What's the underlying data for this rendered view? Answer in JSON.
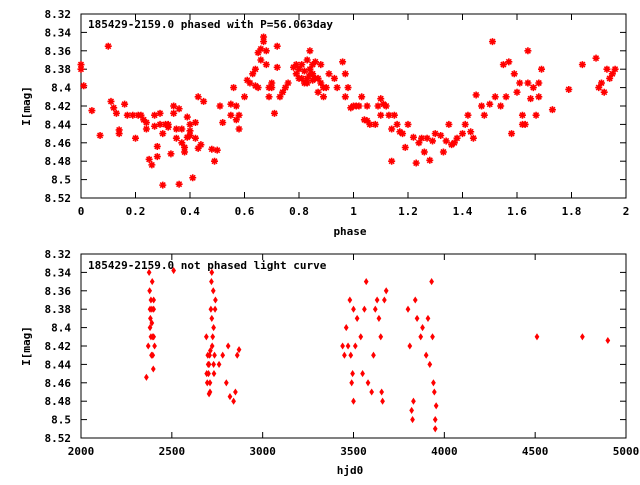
{
  "chart_data": [
    {
      "type": "scatter",
      "title": "185429-2159.0 phased with P=56.063day",
      "xlabel": "phase",
      "ylabel": "I[mag]",
      "xlim": [
        0,
        2
      ],
      "ylim": [
        8.52,
        8.32
      ],
      "y_inverted": true,
      "xticks": [
        "0",
        "0.2",
        "0.4",
        "0.6",
        "0.8",
        "1",
        "1.2",
        "1.4",
        "1.6",
        "1.8",
        "2"
      ],
      "yticks": [
        "8.32",
        "8.34",
        "8.36",
        "8.38",
        "8.4",
        "8.42",
        "8.44",
        "8.46",
        "8.48",
        "8.5",
        "8.52"
      ],
      "marker": "plus",
      "color": "#ff0000",
      "points": [
        [
          0.0,
          8.375
        ],
        [
          0.0,
          8.38
        ],
        [
          0.01,
          8.398
        ],
        [
          0.04,
          8.425
        ],
        [
          0.07,
          8.452
        ],
        [
          0.1,
          8.355
        ],
        [
          0.11,
          8.415
        ],
        [
          0.12,
          8.422
        ],
        [
          0.13,
          8.428
        ],
        [
          0.14,
          8.45
        ],
        [
          0.14,
          8.446
        ],
        [
          0.16,
          8.418
        ],
        [
          0.17,
          8.43
        ],
        [
          0.19,
          8.43
        ],
        [
          0.2,
          8.455
        ],
        [
          0.21,
          8.43
        ],
        [
          0.22,
          8.43
        ],
        [
          0.23,
          8.435
        ],
        [
          0.24,
          8.438
        ],
        [
          0.24,
          8.445
        ],
        [
          0.25,
          8.478
        ],
        [
          0.26,
          8.484
        ],
        [
          0.27,
          8.43
        ],
        [
          0.27,
          8.442
        ],
        [
          0.28,
          8.464
        ],
        [
          0.28,
          8.475
        ],
        [
          0.29,
          8.428
        ],
        [
          0.29,
          8.44
        ],
        [
          0.3,
          8.45
        ],
        [
          0.3,
          8.506
        ],
        [
          0.31,
          8.44
        ],
        [
          0.32,
          8.44
        ],
        [
          0.32,
          8.443
        ],
        [
          0.33,
          8.472
        ],
        [
          0.34,
          8.42
        ],
        [
          0.34,
          8.428
        ],
        [
          0.35,
          8.445
        ],
        [
          0.35,
          8.455
        ],
        [
          0.36,
          8.423
        ],
        [
          0.36,
          8.505
        ],
        [
          0.37,
          8.445
        ],
        [
          0.37,
          8.46
        ],
        [
          0.38,
          8.465
        ],
        [
          0.38,
          8.47
        ],
        [
          0.39,
          8.432
        ],
        [
          0.39,
          8.454
        ],
        [
          0.4,
          8.44
        ],
        [
          0.4,
          8.447
        ],
        [
          0.4,
          8.452
        ],
        [
          0.41,
          8.498
        ],
        [
          0.42,
          8.438
        ],
        [
          0.42,
          8.455
        ],
        [
          0.43,
          8.466
        ],
        [
          0.44,
          8.462
        ],
        [
          0.43,
          8.41
        ],
        [
          0.45,
          8.415
        ],
        [
          0.48,
          8.467
        ],
        [
          0.49,
          8.48
        ],
        [
          0.5,
          8.468
        ],
        [
          0.51,
          8.42
        ],
        [
          0.52,
          8.438
        ],
        [
          0.55,
          8.43
        ],
        [
          0.55,
          8.418
        ],
        [
          0.56,
          8.4
        ],
        [
          0.57,
          8.42
        ],
        [
          0.57,
          8.435
        ],
        [
          0.58,
          8.445
        ],
        [
          0.58,
          8.43
        ],
        [
          0.6,
          8.41
        ],
        [
          0.61,
          8.392
        ],
        [
          0.62,
          8.395
        ],
        [
          0.63,
          8.385
        ],
        [
          0.64,
          8.38
        ],
        [
          0.64,
          8.398
        ],
        [
          0.65,
          8.4
        ],
        [
          0.65,
          8.362
        ],
        [
          0.66,
          8.358
        ],
        [
          0.66,
          8.37
        ],
        [
          0.67,
          8.345
        ],
        [
          0.67,
          8.35
        ],
        [
          0.68,
          8.36
        ],
        [
          0.68,
          8.375
        ],
        [
          0.69,
          8.4
        ],
        [
          0.69,
          8.41
        ],
        [
          0.7,
          8.395
        ],
        [
          0.7,
          8.4
        ],
        [
          0.71,
          8.428
        ],
        [
          0.72,
          8.355
        ],
        [
          0.72,
          8.378
        ],
        [
          0.73,
          8.41
        ],
        [
          0.74,
          8.405
        ],
        [
          0.75,
          8.4
        ],
        [
          0.76,
          8.395
        ],
        [
          0.78,
          8.378
        ],
        [
          0.79,
          8.385
        ],
        [
          0.79,
          8.375
        ],
        [
          0.8,
          8.39
        ],
        [
          0.8,
          8.38
        ],
        [
          0.81,
          8.375
        ],
        [
          0.81,
          8.39
        ],
        [
          0.82,
          8.382
        ],
        [
          0.82,
          8.395
        ],
        [
          0.83,
          8.37
        ],
        [
          0.83,
          8.39
        ],
        [
          0.83,
          8.395
        ],
        [
          0.84,
          8.36
        ],
        [
          0.84,
          8.38
        ],
        [
          0.84,
          8.386
        ],
        [
          0.85,
          8.375
        ],
        [
          0.85,
          8.385
        ],
        [
          0.85,
          8.392
        ],
        [
          0.86,
          8.372
        ],
        [
          0.86,
          8.39
        ],
        [
          0.87,
          8.39
        ],
        [
          0.87,
          8.405
        ],
        [
          0.88,
          8.375
        ],
        [
          0.88,
          8.395
        ],
        [
          0.89,
          8.4
        ],
        [
          0.89,
          8.41
        ],
        [
          0.9,
          8.4
        ],
        [
          0.91,
          8.385
        ],
        [
          0.93,
          8.39
        ],
        [
          0.94,
          8.4
        ],
        [
          0.96,
          8.372
        ],
        [
          0.97,
          8.385
        ],
        [
          0.97,
          8.41
        ],
        [
          0.98,
          8.4
        ],
        [
          0.99,
          8.422
        ],
        [
          1.0,
          8.42
        ],
        [
          1.01,
          8.42
        ],
        [
          1.02,
          8.42
        ],
        [
          1.03,
          8.41
        ],
        [
          1.04,
          8.435
        ],
        [
          1.05,
          8.42
        ],
        [
          1.05,
          8.436
        ],
        [
          1.06,
          8.44
        ],
        [
          1.08,
          8.44
        ],
        [
          1.09,
          8.42
        ],
        [
          1.1,
          8.43
        ],
        [
          1.1,
          8.412
        ],
        [
          1.11,
          8.418
        ],
        [
          1.12,
          8.42
        ],
        [
          1.13,
          8.43
        ],
        [
          1.14,
          8.445
        ],
        [
          1.14,
          8.48
        ],
        [
          1.15,
          8.43
        ],
        [
          1.16,
          8.44
        ],
        [
          1.17,
          8.448
        ],
        [
          1.18,
          8.45
        ],
        [
          1.19,
          8.465
        ],
        [
          1.2,
          8.44
        ],
        [
          1.22,
          8.454
        ],
        [
          1.23,
          8.482
        ],
        [
          1.24,
          8.46
        ],
        [
          1.25,
          8.455
        ],
        [
          1.26,
          8.47
        ],
        [
          1.27,
          8.455
        ],
        [
          1.28,
          8.479
        ],
        [
          1.29,
          8.458
        ],
        [
          1.3,
          8.45
        ],
        [
          1.32,
          8.452
        ],
        [
          1.33,
          8.47
        ],
        [
          1.34,
          8.458
        ],
        [
          1.35,
          8.44
        ],
        [
          1.36,
          8.462
        ],
        [
          1.37,
          8.46
        ],
        [
          1.38,
          8.455
        ],
        [
          1.4,
          8.45
        ],
        [
          1.41,
          8.44
        ],
        [
          1.42,
          8.43
        ],
        [
          1.43,
          8.448
        ],
        [
          1.44,
          8.455
        ],
        [
          1.45,
          8.408
        ],
        [
          1.47,
          8.42
        ],
        [
          1.48,
          8.43
        ],
        [
          1.5,
          8.418
        ],
        [
          1.51,
          8.35
        ],
        [
          1.52,
          8.41
        ],
        [
          1.54,
          8.42
        ],
        [
          1.55,
          8.375
        ],
        [
          1.56,
          8.41
        ],
        [
          1.57,
          8.372
        ],
        [
          1.58,
          8.45
        ],
        [
          1.59,
          8.385
        ],
        [
          1.6,
          8.405
        ],
        [
          1.61,
          8.395
        ],
        [
          1.62,
          8.43
        ],
        [
          1.62,
          8.44
        ],
        [
          1.63,
          8.44
        ],
        [
          1.64,
          8.36
        ],
        [
          1.64,
          8.395
        ],
        [
          1.65,
          8.412
        ],
        [
          1.66,
          8.4
        ],
        [
          1.67,
          8.43
        ],
        [
          1.68,
          8.41
        ],
        [
          1.68,
          8.395
        ],
        [
          1.69,
          8.38
        ],
        [
          1.73,
          8.424
        ],
        [
          1.79,
          8.402
        ],
        [
          1.84,
          8.375
        ],
        [
          1.89,
          8.368
        ],
        [
          1.9,
          8.4
        ],
        [
          1.91,
          8.395
        ],
        [
          1.92,
          8.405
        ],
        [
          1.93,
          8.38
        ],
        [
          1.94,
          8.39
        ],
        [
          1.95,
          8.385
        ],
        [
          1.96,
          8.38
        ]
      ]
    },
    {
      "type": "scatter",
      "title": "185429-2159.0 not phased light curve",
      "xlabel": "hjd0",
      "ylabel": "I[mag]",
      "xlim": [
        2000,
        5000
      ],
      "ylim": [
        8.52,
        8.32
      ],
      "y_inverted": true,
      "xticks": [
        "2000",
        "2500",
        "3000",
        "3500",
        "4000",
        "4500",
        "5000"
      ],
      "yticks": [
        "8.32",
        "8.34",
        "8.36",
        "8.38",
        "8.4",
        "8.42",
        "8.44",
        "8.46",
        "8.48",
        "8.5",
        "8.52"
      ],
      "marker": "diamond",
      "color": "#ff0000",
      "points": [
        [
          2360,
          8.454
        ],
        [
          2370,
          8.42
        ],
        [
          2375,
          8.34
        ],
        [
          2378,
          8.36
        ],
        [
          2380,
          8.38
        ],
        [
          2380,
          8.4
        ],
        [
          2382,
          8.39
        ],
        [
          2385,
          8.37
        ],
        [
          2385,
          8.41
        ],
        [
          2388,
          8.43
        ],
        [
          2390,
          8.395
        ],
        [
          2390,
          8.38
        ],
        [
          2392,
          8.35
        ],
        [
          2395,
          8.43
        ],
        [
          2395,
          8.41
        ],
        [
          2398,
          8.445
        ],
        [
          2400,
          8.41
        ],
        [
          2400,
          8.37
        ],
        [
          2400,
          8.38
        ],
        [
          2405,
          8.42
        ],
        [
          2510,
          8.338
        ],
        [
          2690,
          8.41
        ],
        [
          2692,
          8.45
        ],
        [
          2695,
          8.46
        ],
        [
          2698,
          8.43
        ],
        [
          2700,
          8.44
        ],
        [
          2702,
          8.45
        ],
        [
          2705,
          8.472
        ],
        [
          2705,
          8.44
        ],
        [
          2708,
          8.43
        ],
        [
          2710,
          8.46
        ],
        [
          2710,
          8.47
        ],
        [
          2712,
          8.425
        ],
        [
          2715,
          8.38
        ],
        [
          2718,
          8.35
        ],
        [
          2720,
          8.34
        ],
        [
          2720,
          8.39
        ],
        [
          2722,
          8.42
        ],
        [
          2725,
          8.41
        ],
        [
          2728,
          8.36
        ],
        [
          2730,
          8.4
        ],
        [
          2730,
          8.44
        ],
        [
          2732,
          8.45
        ],
        [
          2735,
          8.43
        ],
        [
          2738,
          8.38
        ],
        [
          2740,
          8.37
        ],
        [
          2760,
          8.44
        ],
        [
          2780,
          8.43
        ],
        [
          2800,
          8.46
        ],
        [
          2810,
          8.42
        ],
        [
          2820,
          8.475
        ],
        [
          2840,
          8.48
        ],
        [
          2850,
          8.47
        ],
        [
          2860,
          8.43
        ],
        [
          2870,
          8.424
        ],
        [
          3440,
          8.42
        ],
        [
          3450,
          8.43
        ],
        [
          3460,
          8.4
        ],
        [
          3470,
          8.42
        ],
        [
          3480,
          8.37
        ],
        [
          3485,
          8.43
        ],
        [
          3490,
          8.46
        ],
        [
          3495,
          8.45
        ],
        [
          3500,
          8.38
        ],
        [
          3500,
          8.48
        ],
        [
          3510,
          8.42
        ],
        [
          3520,
          8.39
        ],
        [
          3540,
          8.41
        ],
        [
          3550,
          8.45
        ],
        [
          3560,
          8.38
        ],
        [
          3570,
          8.35
        ],
        [
          3580,
          8.46
        ],
        [
          3600,
          8.47
        ],
        [
          3610,
          8.43
        ],
        [
          3620,
          8.38
        ],
        [
          3630,
          8.37
        ],
        [
          3640,
          8.39
        ],
        [
          3650,
          8.41
        ],
        [
          3655,
          8.47
        ],
        [
          3660,
          8.48
        ],
        [
          3670,
          8.37
        ],
        [
          3680,
          8.36
        ],
        [
          3800,
          8.38
        ],
        [
          3810,
          8.42
        ],
        [
          3820,
          8.49
        ],
        [
          3825,
          8.5
        ],
        [
          3830,
          8.48
        ],
        [
          3840,
          8.37
        ],
        [
          3850,
          8.39
        ],
        [
          3870,
          8.41
        ],
        [
          3880,
          8.4
        ],
        [
          3900,
          8.43
        ],
        [
          3910,
          8.39
        ],
        [
          3920,
          8.44
        ],
        [
          3930,
          8.35
        ],
        [
          3935,
          8.41
        ],
        [
          3940,
          8.46
        ],
        [
          3945,
          8.47
        ],
        [
          3950,
          8.5
        ],
        [
          3950,
          8.51
        ],
        [
          3955,
          8.485
        ],
        [
          4510,
          8.41
        ],
        [
          4760,
          8.41
        ],
        [
          4900,
          8.414
        ]
      ]
    }
  ]
}
